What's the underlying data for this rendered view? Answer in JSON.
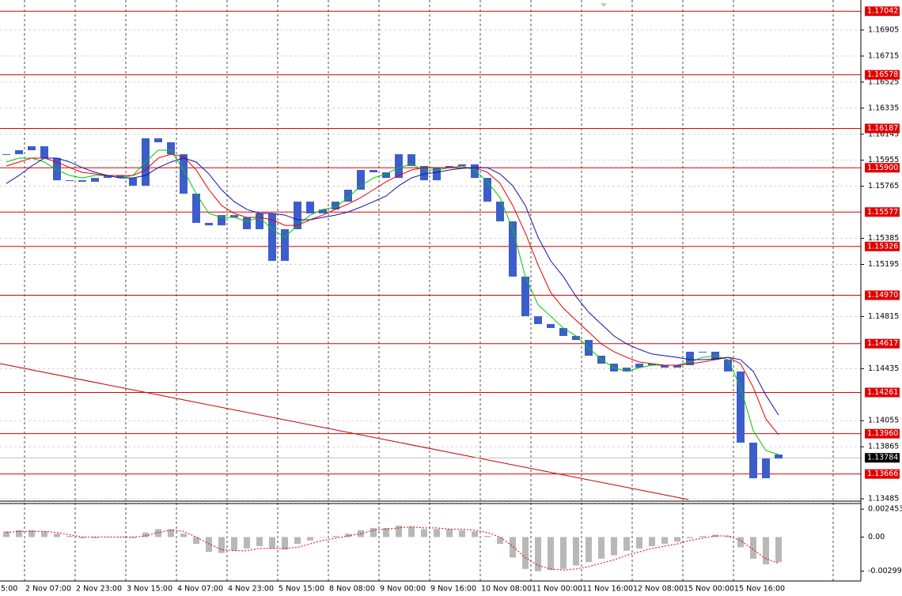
{
  "chart_data": {
    "type": "candlestick",
    "color": "#3c5ecb",
    "close": [
      1.15999,
      1.16028,
      1.16057,
      1.15971,
      1.15809,
      1.15809,
      1.15798,
      1.15826,
      1.15844,
      1.15826,
      1.15769,
      1.16115,
      1.16086,
      1.15999,
      1.15711,
      1.15498,
      1.1548,
      1.15555,
      1.15538,
      1.15452,
      1.15567,
      1.15221,
      1.15452,
      1.15653,
      1.15567,
      1.15596,
      1.15653,
      1.1574,
      1.15884,
      1.15867,
      1.15826,
      1.15999,
      1.15913,
      1.15809,
      1.15901,
      1.15913,
      1.15925,
      1.15826,
      1.15653,
      1.15509,
      1.15106,
      1.14817,
      1.1476,
      1.14731,
      1.14673,
      1.14644,
      1.14529,
      1.14471,
      1.14414,
      1.14442,
      1.14471,
      1.1446,
      1.14442,
      1.1446,
      1.14558,
      1.14558,
      1.145,
      1.14414,
      1.13895,
      1.13635,
      1.13779,
      1.13808
    ],
    "moving_averages": [
      {
        "color": "#00c800",
        "values": [
          1.15942,
          1.15971,
          1.15971,
          1.15942,
          1.15884,
          1.15844,
          1.15826,
          1.15844,
          1.15844,
          1.15826,
          1.15844,
          1.15942,
          1.16028,
          1.16028,
          1.15884,
          1.15711,
          1.15567,
          1.15538,
          1.15538,
          1.15509,
          1.15538,
          1.15452,
          1.15394,
          1.1548,
          1.15555,
          1.15596,
          1.15613,
          1.15682,
          1.15769,
          1.15826,
          1.15855,
          1.15901,
          1.15925,
          1.15884,
          1.15884,
          1.15901,
          1.15913,
          1.15884,
          1.15798,
          1.15682,
          1.15452,
          1.15106,
          1.14902,
          1.14817,
          1.14731,
          1.14673,
          1.14587,
          1.145,
          1.14442,
          1.14414,
          1.14442,
          1.1446,
          1.1446,
          1.1446,
          1.14483,
          1.14517,
          1.14529,
          1.145,
          1.14298,
          1.13981,
          1.13837,
          1.13808
        ]
      },
      {
        "color": "#e00000",
        "values": [
          1.15913,
          1.15942,
          1.15971,
          1.15971,
          1.15942,
          1.15901,
          1.15867,
          1.15855,
          1.15844,
          1.15844,
          1.15844,
          1.15884,
          1.15971,
          1.15999,
          1.15982,
          1.15884,
          1.1574,
          1.15625,
          1.15567,
          1.15538,
          1.15538,
          1.15521,
          1.1548,
          1.1548,
          1.15521,
          1.15555,
          1.15596,
          1.15636,
          1.15682,
          1.1574,
          1.15798,
          1.15844,
          1.15884,
          1.15901,
          1.15901,
          1.15901,
          1.15901,
          1.15901,
          1.15867,
          1.15786,
          1.15625,
          1.15423,
          1.15192,
          1.1499,
          1.14875,
          1.14788,
          1.14702,
          1.14615,
          1.14558,
          1.14517,
          1.14483,
          1.14471,
          1.1446,
          1.1446,
          1.14471,
          1.14483,
          1.145,
          1.14517,
          1.14471,
          1.14298,
          1.14067,
          1.13952
        ]
      },
      {
        "color": "#1010b0",
        "values": [
          1.15786,
          1.15844,
          1.15913,
          1.15971,
          1.15971,
          1.15942,
          1.15901,
          1.15867,
          1.15844,
          1.15826,
          1.15826,
          1.15844,
          1.15901,
          1.15942,
          1.15971,
          1.15942,
          1.15855,
          1.1574,
          1.15653,
          1.15596,
          1.15567,
          1.15567,
          1.15555,
          1.15521,
          1.15521,
          1.15538,
          1.15555,
          1.15578,
          1.15613,
          1.15653,
          1.15694,
          1.15769,
          1.15826,
          1.15855,
          1.15867,
          1.15884,
          1.15896,
          1.15901,
          1.15901,
          1.15855,
          1.15769,
          1.15625,
          1.15394,
          1.15221,
          1.15106,
          1.14961,
          1.14846,
          1.1476,
          1.14673,
          1.14615,
          1.14575,
          1.14541,
          1.14529,
          1.14517,
          1.145,
          1.145,
          1.14506,
          1.14517,
          1.145,
          1.14414,
          1.14241,
          1.14096
        ]
      }
    ],
    "ylim": [
      1.13468,
      1.17124
    ],
    "yticks": [
      1.16905,
      1.16715,
      1.16525,
      1.16335,
      1.16145,
      1.15955,
      1.15765,
      1.15385,
      1.15195,
      1.14815,
      1.14435,
      1.14055,
      1.13865,
      1.13485
    ],
    "grid": true,
    "levels": [
      1.17042,
      1.16578,
      1.16187,
      {
        "value": 1.159,
        "label": "1.15900"
      },
      1.15577,
      1.15326,
      {
        "value": 1.1497,
        "label": "1.14970"
      },
      1.14617,
      1.14261,
      {
        "value": 1.1396,
        "label": "1.13960"
      },
      1.13666
    ],
    "level_color": "#e00000",
    "current_price": 1.13784,
    "x_labels": [
      "5:00",
      "2 Nov 07:00",
      "2 Nov 23:00",
      "3 Nov 15:00",
      "4 Nov 07:00",
      "4 Nov 23:00",
      "5 Nov 15:00",
      "8 Nov 08:00",
      "9 Nov 00:00",
      "9 Nov 16:00",
      "10 Nov 08:00",
      "11 Nov 00:00",
      "11 Nov 16:00",
      "12 Nov 08:00",
      "15 Nov 00:00",
      "15 Nov 16:00"
    ],
    "indicator": {
      "type": "histogram",
      "color": "#b8b8b8",
      "signal_color": "#e00000",
      "values": [
        0.0005,
        0.0006,
        0.0006,
        0.0005,
        0.0003,
        0.0001,
        -0.0001,
        -0.0001,
        0,
        0,
        -0.0001,
        0.0004,
        0.0007,
        0.0007,
        0.0003,
        -0.0006,
        -0.0013,
        -0.0014,
        -0.0012,
        -0.001,
        -0.0008,
        -0.001,
        -0.0011,
        -0.0006,
        -0.0003,
        0,
        0.0001,
        0.0003,
        0.0006,
        0.0008,
        0.0008,
        0.001,
        0.0009,
        0.0007,
        0.0007,
        0.0007,
        0.0006,
        0.0005,
        0.0001,
        -0.0006,
        -0.0018,
        -0.0028,
        -0.003,
        -0.0029,
        -0.0028,
        -0.0025,
        -0.0022,
        -0.0019,
        -0.0016,
        -0.0012,
        -0.001,
        -0.0008,
        -0.0006,
        -0.0004,
        -0.0001,
        0.0001,
        0.0002,
        0.0001,
        -0.0009,
        -0.0019,
        -0.0024,
        -0.0022
      ],
      "signal": [
        0.0004,
        0.0005,
        0.0005,
        0.0005,
        0.0004,
        0.0002,
        0,
        0,
        0,
        0,
        0,
        0.0001,
        0.0004,
        0.0006,
        0.0005,
        0,
        -0.0006,
        -0.0011,
        -0.0012,
        -0.0012,
        -0.001,
        -0.001,
        -0.001,
        -0.0009,
        -0.0006,
        -0.0003,
        -0.0001,
        0.0001,
        0.0003,
        0.0006,
        0.0007,
        0.0008,
        0.0009,
        0.0008,
        0.0008,
        0.0007,
        0.0007,
        0.0006,
        0.0004,
        0,
        -0.0008,
        -0.0018,
        -0.0025,
        -0.0028,
        -0.0029,
        -0.0028,
        -0.0026,
        -0.0023,
        -0.002,
        -0.0016,
        -0.0013,
        -0.001,
        -0.0008,
        -0.0006,
        -0.0003,
        -0.0001,
        0.0001,
        0.0001,
        -0.0003,
        -0.0011,
        -0.0019,
        -0.0023
      ],
      "ylim": [
        -0.003854,
        0.002943
      ],
      "yticks": [
        0.002453,
        {
          "value": 0,
          "label": "0.00"
        },
        -0.002991
      ]
    }
  }
}
